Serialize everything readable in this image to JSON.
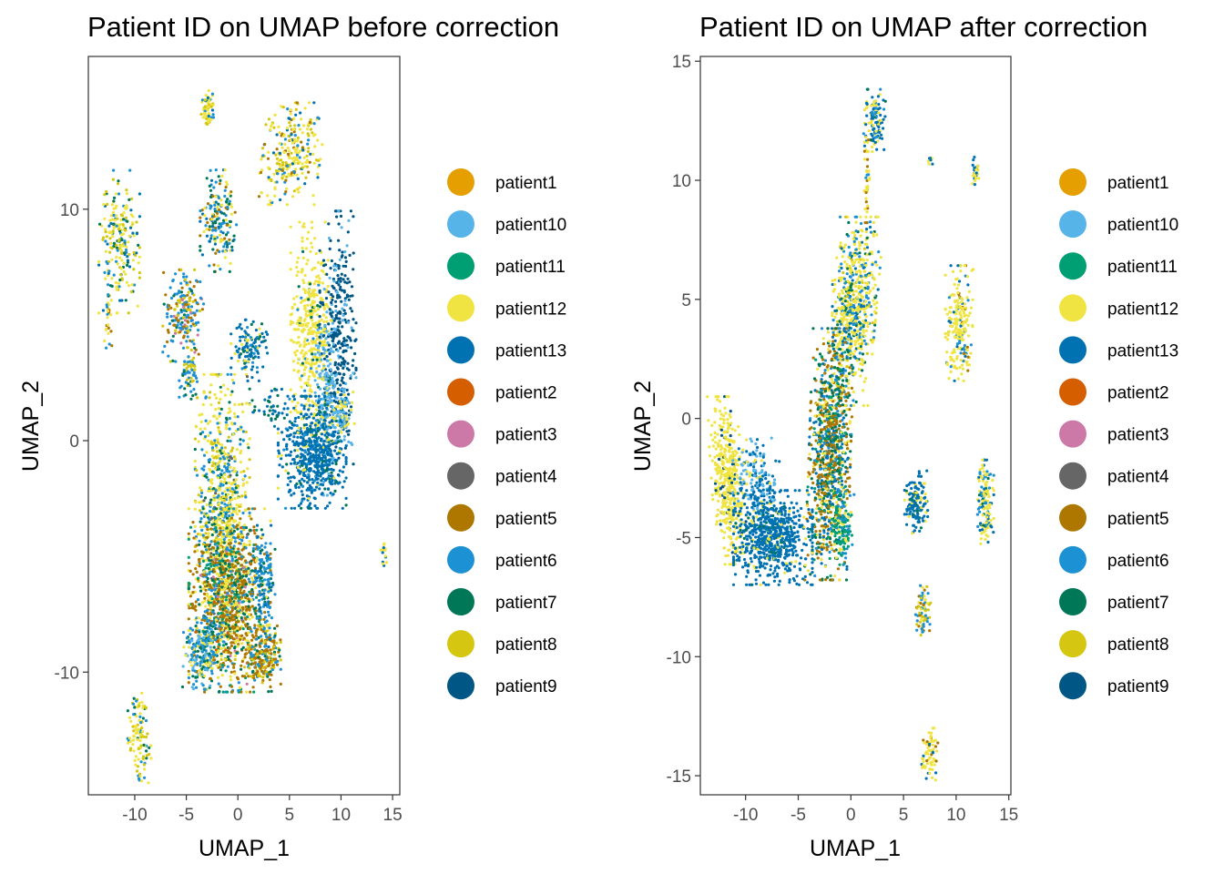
{
  "chart_data": [
    {
      "type": "scatter",
      "title": "Patient ID on UMAP before correction",
      "xlabel": "UMAP_1",
      "ylabel": "UMAP_2",
      "xlim": [
        -14.5,
        15.7
      ],
      "ylim": [
        -15.3,
        16.6
      ],
      "xticks": [
        -10,
        -5,
        0,
        5,
        10,
        15
      ],
      "xtick_labels": [
        "-10",
        "-5",
        "0",
        "5",
        "10",
        "15"
      ],
      "yticks": [
        10,
        0,
        -10
      ],
      "ytick_labels": [
        "10",
        "0",
        "-10"
      ],
      "grid": false,
      "legend_position": "right",
      "clusters": [
        {
          "cx": -2.9,
          "cy": 14.4,
          "sx": 0.35,
          "sy": 0.4,
          "n": 60,
          "mix": {
            "patient12": 0.6,
            "patient8": 0.2,
            "patient6": 0.1,
            "patient13": 0.1
          }
        },
        {
          "cx": 5.2,
          "cy": 12.4,
          "sx": 1.3,
          "sy": 1.0,
          "n": 260,
          "tilt": 0.6,
          "mix": {
            "patient12": 0.45,
            "patient8": 0.25,
            "patient6": 0.1,
            "patient13": 0.1,
            "patient5": 0.1
          }
        },
        {
          "cx": -11.5,
          "cy": 8.6,
          "sx": 0.9,
          "sy": 1.4,
          "n": 220,
          "mix": {
            "patient12": 0.45,
            "patient8": 0.2,
            "patient6": 0.15,
            "patient13": 0.1,
            "patient7": 0.1
          }
        },
        {
          "cx": -12.6,
          "cy": 5.3,
          "sx": 0.2,
          "sy": 0.6,
          "n": 25,
          "mix": {
            "patient12": 0.6,
            "patient6": 0.2,
            "patient5": 0.2
          }
        },
        {
          "cx": -1.9,
          "cy": 9.5,
          "sx": 0.8,
          "sy": 1.0,
          "n": 180,
          "mix": {
            "patient6": 0.3,
            "patient12": 0.2,
            "patient13": 0.2,
            "patient5": 0.15,
            "patient7": 0.15
          }
        },
        {
          "cx": -5.3,
          "cy": 5.4,
          "sx": 0.9,
          "sy": 0.9,
          "n": 200,
          "mix": {
            "patient6": 0.4,
            "patient5": 0.25,
            "patient8": 0.2,
            "patient3": 0.05,
            "patient7": 0.1
          }
        },
        {
          "cx": -4.7,
          "cy": 2.9,
          "sx": 0.45,
          "sy": 0.5,
          "n": 60,
          "mix": {
            "patient6": 0.6,
            "patient7": 0.2,
            "patient8": 0.2
          }
        },
        {
          "cx": 1.1,
          "cy": 3.9,
          "sx": 0.8,
          "sy": 0.6,
          "n": 120,
          "mix": {
            "patient13": 0.55,
            "patient7": 0.15,
            "patient12": 0.15,
            "patient6": 0.15
          }
        },
        {
          "cx": 7.1,
          "cy": 4.6,
          "sx": 0.9,
          "sy": 2.2,
          "n": 420,
          "mix": {
            "patient12": 0.9,
            "patient7": 0.05,
            "patient6": 0.05
          }
        },
        {
          "cx": 9.7,
          "cy": 4.2,
          "sx": 0.8,
          "sy": 2.6,
          "n": 380,
          "mix": {
            "patient9": 0.8,
            "patient10": 0.2
          }
        },
        {
          "cx": 8.6,
          "cy": 1.6,
          "sx": 0.5,
          "sy": 1.8,
          "n": 200,
          "mix": {
            "patient10": 0.8,
            "patient12": 0.1,
            "patient7": 0.1
          }
        },
        {
          "cx": 7.2,
          "cy": -0.5,
          "sx": 1.5,
          "sy": 1.1,
          "n": 600,
          "mix": {
            "patient13": 0.85,
            "patient6": 0.05,
            "patient7": 0.05,
            "patient12": 0.05
          }
        },
        {
          "cx": 10.2,
          "cy": 1.0,
          "sx": 0.5,
          "sy": 0.5,
          "n": 60,
          "mix": {
            "patient12": 0.6,
            "patient10": 0.4
          }
        },
        {
          "cx": 3.2,
          "cy": 1.5,
          "sx": 1.0,
          "sy": 0.4,
          "n": 40,
          "tilt": -0.6,
          "mix": {
            "patient13": 0.6,
            "patient7": 0.4
          }
        },
        {
          "cx": -1.5,
          "cy": -3.3,
          "sx": 1.2,
          "sy": 2.8,
          "n": 900,
          "mix": {
            "patient12": 0.45,
            "patient6": 0.25,
            "patient8": 0.15,
            "patient7": 0.1,
            "patient4": 0.05
          }
        },
        {
          "cx": -0.8,
          "cy": -6.9,
          "sx": 1.8,
          "sy": 1.8,
          "n": 1100,
          "mix": {
            "patient5": 0.4,
            "patient12": 0.2,
            "patient7": 0.15,
            "patient6": 0.1,
            "patient11": 0.1,
            "patient3": 0.03,
            "patient2": 0.02
          }
        },
        {
          "cx": -3.6,
          "cy": -9.2,
          "sx": 0.8,
          "sy": 0.7,
          "n": 200,
          "mix": {
            "patient6": 0.4,
            "patient10": 0.2,
            "patient7": 0.2,
            "patient12": 0.2
          }
        },
        {
          "cx": 2.4,
          "cy": -9.3,
          "sx": 0.8,
          "sy": 0.7,
          "n": 200,
          "mix": {
            "patient5": 0.4,
            "patient8": 0.3,
            "patient6": 0.2,
            "patient7": 0.1
          }
        },
        {
          "cx": 2.5,
          "cy": -6.3,
          "sx": 0.5,
          "sy": 1.2,
          "n": 120,
          "mix": {
            "patient6": 0.5,
            "patient13": 0.3,
            "patient7": 0.2
          }
        },
        {
          "cx": 14.1,
          "cy": -5.0,
          "sx": 0.15,
          "sy": 0.25,
          "n": 15,
          "mix": {
            "patient13": 0.5,
            "patient12": 0.5
          }
        },
        {
          "cx": -9.6,
          "cy": -12.8,
          "sx": 0.5,
          "sy": 0.9,
          "n": 110,
          "tilt": -0.4,
          "mix": {
            "patient12": 0.55,
            "patient8": 0.2,
            "patient6": 0.15,
            "patient7": 0.1
          }
        }
      ]
    },
    {
      "type": "scatter",
      "title": "Patient ID on UMAP after correction",
      "xlabel": "UMAP_1",
      "ylabel": "UMAP_2",
      "xlim": [
        -14.3,
        15.2
      ],
      "ylim": [
        -15.8,
        15.2
      ],
      "xticks": [
        -10,
        -5,
        0,
        5,
        10,
        15
      ],
      "xtick_labels": [
        "-10",
        "-5",
        "0",
        "5",
        "10",
        "15"
      ],
      "yticks": [
        15,
        10,
        5,
        0,
        -5,
        -10,
        -15
      ],
      "ytick_labels": [
        "15",
        "10",
        "5",
        "0",
        "-5",
        "-10",
        "-15"
      ],
      "grid": false,
      "legend_position": "right",
      "clusters": [
        {
          "cx": 2.3,
          "cy": 12.5,
          "sx": 0.45,
          "sy": 0.6,
          "n": 120,
          "mix": {
            "patient13": 0.45,
            "patient12": 0.3,
            "patient6": 0.15,
            "patient7": 0.1
          }
        },
        {
          "cx": 1.5,
          "cy": 10.2,
          "sx": 0.15,
          "sy": 0.9,
          "n": 40,
          "mix": {
            "patient12": 0.5,
            "patient6": 0.3,
            "patient5": 0.2
          }
        },
        {
          "cx": 7.6,
          "cy": 10.9,
          "sx": 0.15,
          "sy": 0.12,
          "n": 10,
          "mix": {
            "patient12": 0.5,
            "patient13": 0.5
          }
        },
        {
          "cx": 11.9,
          "cy": 10.4,
          "sx": 0.2,
          "sy": 0.35,
          "n": 30,
          "mix": {
            "patient12": 0.6,
            "patient13": 0.4
          }
        },
        {
          "cx": 0.2,
          "cy": 4.5,
          "sx": 1.0,
          "sy": 1.8,
          "n": 700,
          "tilt": 0.4,
          "mix": {
            "patient12": 0.55,
            "patient6": 0.2,
            "patient7": 0.1,
            "patient13": 0.1,
            "patient8": 0.05
          }
        },
        {
          "cx": -2.0,
          "cy": -1.5,
          "sx": 0.9,
          "sy": 2.4,
          "n": 1000,
          "tilt": 0.15,
          "mix": {
            "patient5": 0.3,
            "patient7": 0.2,
            "patient12": 0.15,
            "patient13": 0.15,
            "patient6": 0.1,
            "patient11": 0.1
          }
        },
        {
          "cx": -0.8,
          "cy": -4.6,
          "sx": 0.5,
          "sy": 0.7,
          "n": 140,
          "mix": {
            "patient11": 0.4,
            "patient12": 0.3,
            "patient6": 0.3
          }
        },
        {
          "cx": 10.3,
          "cy": 4.0,
          "sx": 0.6,
          "sy": 1.1,
          "n": 220,
          "mix": {
            "patient12": 0.75,
            "patient6": 0.1,
            "patient13": 0.1,
            "patient5": 0.05
          }
        },
        {
          "cx": -11.7,
          "cy": -2.6,
          "sx": 0.7,
          "sy": 1.6,
          "n": 450,
          "tilt": -0.3,
          "mix": {
            "patient12": 0.9,
            "patient9": 0.1
          }
        },
        {
          "cx": -9.0,
          "cy": -2.8,
          "sx": 1.0,
          "sy": 0.9,
          "n": 200,
          "mix": {
            "patient10": 0.4,
            "patient13": 0.45,
            "patient12": 0.15
          }
        },
        {
          "cx": -7.4,
          "cy": -5.0,
          "sx": 1.7,
          "sy": 0.9,
          "n": 700,
          "mix": {
            "patient13": 0.9,
            "patient12": 0.05,
            "patient7": 0.05
          }
        },
        {
          "cx": 6.2,
          "cy": -3.5,
          "sx": 0.5,
          "sy": 0.6,
          "n": 140,
          "mix": {
            "patient13": 0.7,
            "patient12": 0.2,
            "patient7": 0.1
          }
        },
        {
          "cx": 12.8,
          "cy": -3.5,
          "sx": 0.35,
          "sy": 0.8,
          "n": 140,
          "mix": {
            "patient12": 0.55,
            "patient6": 0.2,
            "patient13": 0.15,
            "patient7": 0.1
          }
        },
        {
          "cx": 6.8,
          "cy": -8.2,
          "sx": 0.35,
          "sy": 0.55,
          "n": 70,
          "mix": {
            "patient6": 0.4,
            "patient8": 0.35,
            "patient5": 0.15,
            "patient12": 0.1
          }
        },
        {
          "cx": 7.5,
          "cy": -14.1,
          "sx": 0.35,
          "sy": 0.5,
          "n": 70,
          "mix": {
            "patient12": 0.75,
            "patient13": 0.15,
            "patient5": 0.1
          }
        }
      ]
    }
  ],
  "legend": {
    "items": [
      {
        "label": "patient1",
        "color": "#E69F00"
      },
      {
        "label": "patient10",
        "color": "#56B4E9"
      },
      {
        "label": "patient11",
        "color": "#009E73"
      },
      {
        "label": "patient12",
        "color": "#F0E442"
      },
      {
        "label": "patient13",
        "color": "#0072B2"
      },
      {
        "label": "patient2",
        "color": "#D55E00"
      },
      {
        "label": "patient3",
        "color": "#CC79A7"
      },
      {
        "label": "patient4",
        "color": "#666666"
      },
      {
        "label": "patient5",
        "color": "#AD7700"
      },
      {
        "label": "patient6",
        "color": "#1C91D4"
      },
      {
        "label": "patient7",
        "color": "#007756"
      },
      {
        "label": "patient8",
        "color": "#D5C711"
      },
      {
        "label": "patient9",
        "color": "#005685"
      }
    ]
  }
}
